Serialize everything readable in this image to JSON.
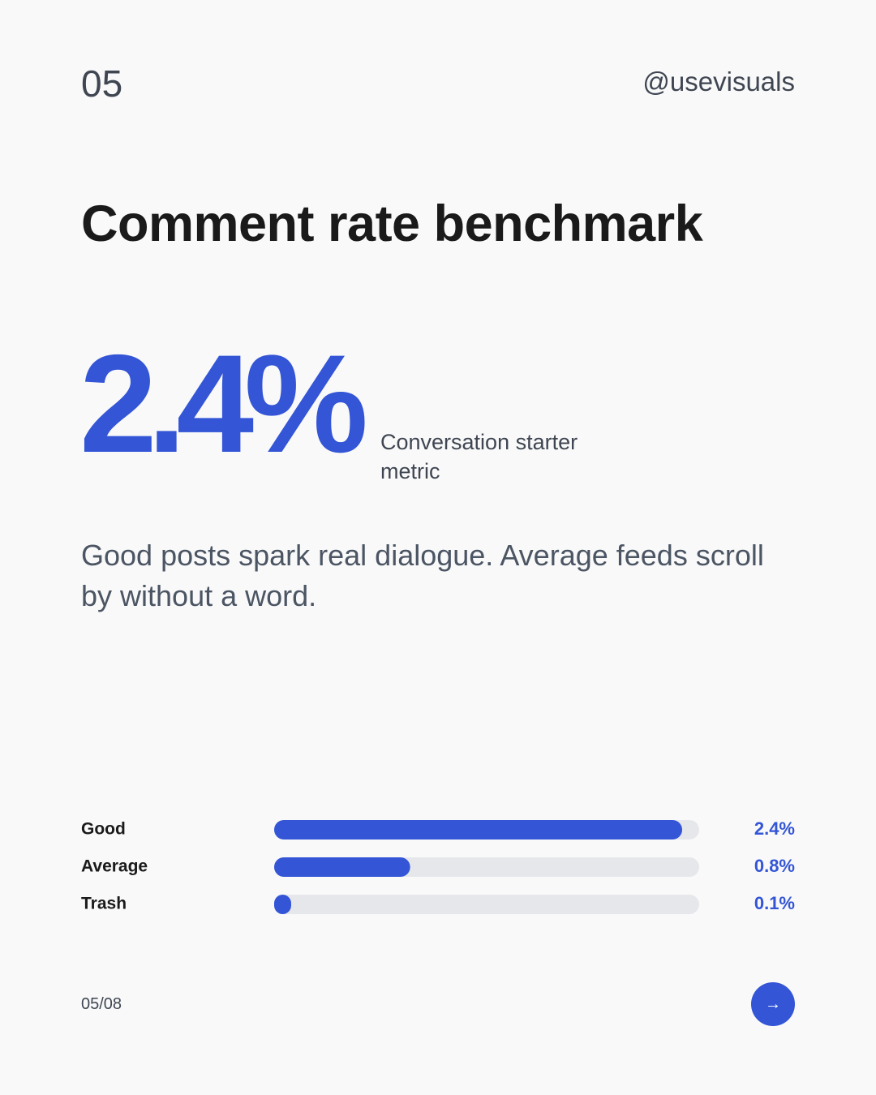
{
  "header": {
    "number": "05",
    "handle": "@usevisuals"
  },
  "title": "Comment rate benchmark",
  "metric": {
    "value": "2.4%",
    "caption": "Conversation starter metric"
  },
  "body": "Good posts spark real dialogue. Average feeds scroll by without a word.",
  "chart_data": {
    "type": "bar",
    "orientation": "horizontal",
    "categories": [
      "Good",
      "Average",
      "Trash"
    ],
    "values": [
      2.4,
      0.8,
      0.1
    ],
    "value_labels": [
      "2.4%",
      "0.8%",
      "0.1%"
    ],
    "xlim": [
      0,
      2.5
    ],
    "color": "#3355d6",
    "track_color": "#e5e7eb"
  },
  "footer": {
    "page": "05/08",
    "next": "→"
  }
}
